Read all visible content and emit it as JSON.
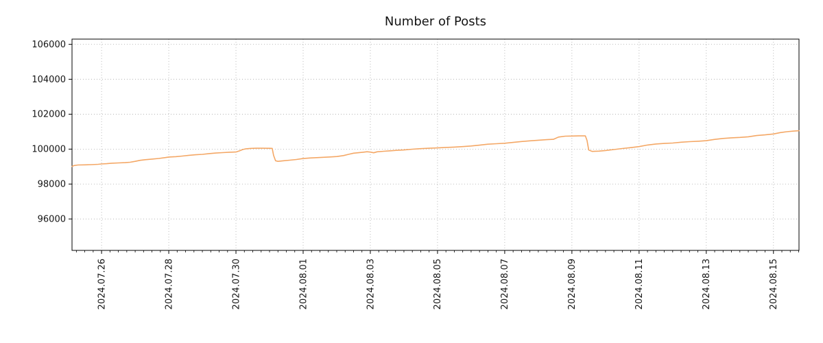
{
  "chart_data": {
    "type": "line",
    "title": "Number of Posts",
    "xlabel": "",
    "ylabel": "",
    "legend": "none",
    "grid": {
      "visible": true,
      "linestyle": "dotted",
      "color": "#a9a9a9"
    },
    "x_unit": "days since 2024-07-25 00:00",
    "xlim": [
      0.12,
      21.76
    ],
    "ylim": [
      94200,
      106300
    ],
    "y_ticks": [
      96000,
      98000,
      100000,
      102000,
      104000,
      106000
    ],
    "x_ticks": [
      {
        "pos": 1,
        "label": "2024.07.26"
      },
      {
        "pos": 3,
        "label": "2024.07.28"
      },
      {
        "pos": 5,
        "label": "2024.07.30"
      },
      {
        "pos": 7,
        "label": "2024.08.01"
      },
      {
        "pos": 9,
        "label": "2024.08.03"
      },
      {
        "pos": 11,
        "label": "2024.08.05"
      },
      {
        "pos": 13,
        "label": "2024.08.07"
      },
      {
        "pos": 15,
        "label": "2024.08.09"
      },
      {
        "pos": 17,
        "label": "2024.08.11"
      },
      {
        "pos": 19,
        "label": "2024.08.13"
      },
      {
        "pos": 21,
        "label": "2024.08.15"
      }
    ],
    "x_minor_step": 0.25,
    "series": [
      {
        "name": "number-of-posts",
        "color": "#f4a765",
        "linewidth": 1.6,
        "points": [
          [
            0.12,
            99010
          ],
          [
            0.18,
            99060
          ],
          [
            0.3,
            99090
          ],
          [
            0.5,
            99100
          ],
          [
            0.7,
            99110
          ],
          [
            0.9,
            99130
          ],
          [
            1.0,
            99150
          ],
          [
            1.15,
            99165
          ],
          [
            1.3,
            99195
          ],
          [
            1.5,
            99210
          ],
          [
            1.7,
            99225
          ],
          [
            1.85,
            99250
          ],
          [
            2.0,
            99300
          ],
          [
            2.15,
            99360
          ],
          [
            2.3,
            99395
          ],
          [
            2.5,
            99430
          ],
          [
            2.7,
            99465
          ],
          [
            2.9,
            99515
          ],
          [
            3.0,
            99545
          ],
          [
            3.2,
            99565
          ],
          [
            3.4,
            99600
          ],
          [
            3.6,
            99645
          ],
          [
            3.8,
            99675
          ],
          [
            4.0,
            99700
          ],
          [
            4.2,
            99745
          ],
          [
            4.4,
            99775
          ],
          [
            4.6,
            99800
          ],
          [
            4.8,
            99820
          ],
          [
            5.0,
            99835
          ],
          [
            5.1,
            99895
          ],
          [
            5.2,
            99975
          ],
          [
            5.3,
            100020
          ],
          [
            5.45,
            100040
          ],
          [
            5.6,
            100050
          ],
          [
            5.8,
            100050
          ],
          [
            6.0,
            100045
          ],
          [
            6.08,
            100040
          ],
          [
            6.12,
            99640
          ],
          [
            6.18,
            99330
          ],
          [
            6.25,
            99300
          ],
          [
            6.4,
            99330
          ],
          [
            6.6,
            99365
          ],
          [
            6.8,
            99405
          ],
          [
            7.0,
            99460
          ],
          [
            7.2,
            99490
          ],
          [
            7.4,
            99510
          ],
          [
            7.6,
            99530
          ],
          [
            7.8,
            99550
          ],
          [
            8.0,
            99575
          ],
          [
            8.2,
            99630
          ],
          [
            8.35,
            99700
          ],
          [
            8.5,
            99765
          ],
          [
            8.65,
            99795
          ],
          [
            8.8,
            99825
          ],
          [
            8.9,
            99850
          ],
          [
            9.0,
            99830
          ],
          [
            9.1,
            99790
          ],
          [
            9.2,
            99845
          ],
          [
            9.4,
            99875
          ],
          [
            9.6,
            99905
          ],
          [
            9.8,
            99930
          ],
          [
            10.0,
            99950
          ],
          [
            10.25,
            99995
          ],
          [
            10.5,
            100025
          ],
          [
            10.75,
            100050
          ],
          [
            11.0,
            100070
          ],
          [
            11.25,
            100095
          ],
          [
            11.5,
            100115
          ],
          [
            11.75,
            100145
          ],
          [
            12.0,
            100180
          ],
          [
            12.25,
            100225
          ],
          [
            12.5,
            100280
          ],
          [
            12.75,
            100310
          ],
          [
            13.0,
            100335
          ],
          [
            13.25,
            100385
          ],
          [
            13.5,
            100435
          ],
          [
            13.75,
            100475
          ],
          [
            14.0,
            100510
          ],
          [
            14.25,
            100540
          ],
          [
            14.45,
            100560
          ],
          [
            14.6,
            100690
          ],
          [
            14.8,
            100740
          ],
          [
            15.0,
            100750
          ],
          [
            15.2,
            100755
          ],
          [
            15.4,
            100755
          ],
          [
            15.45,
            100500
          ],
          [
            15.5,
            99950
          ],
          [
            15.6,
            99870
          ],
          [
            15.8,
            99885
          ],
          [
            16.0,
            99920
          ],
          [
            16.25,
            99975
          ],
          [
            16.5,
            100035
          ],
          [
            16.75,
            100085
          ],
          [
            17.0,
            100145
          ],
          [
            17.25,
            100235
          ],
          [
            17.5,
            100295
          ],
          [
            17.75,
            100325
          ],
          [
            18.0,
            100350
          ],
          [
            18.25,
            100395
          ],
          [
            18.5,
            100425
          ],
          [
            18.75,
            100450
          ],
          [
            19.0,
            100480
          ],
          [
            19.25,
            100555
          ],
          [
            19.5,
            100610
          ],
          [
            19.75,
            100645
          ],
          [
            20.0,
            100670
          ],
          [
            20.25,
            100705
          ],
          [
            20.5,
            100775
          ],
          [
            20.75,
            100815
          ],
          [
            21.0,
            100865
          ],
          [
            21.2,
            100945
          ],
          [
            21.4,
            100995
          ],
          [
            21.6,
            101030
          ],
          [
            21.76,
            101050
          ]
        ]
      }
    ]
  }
}
